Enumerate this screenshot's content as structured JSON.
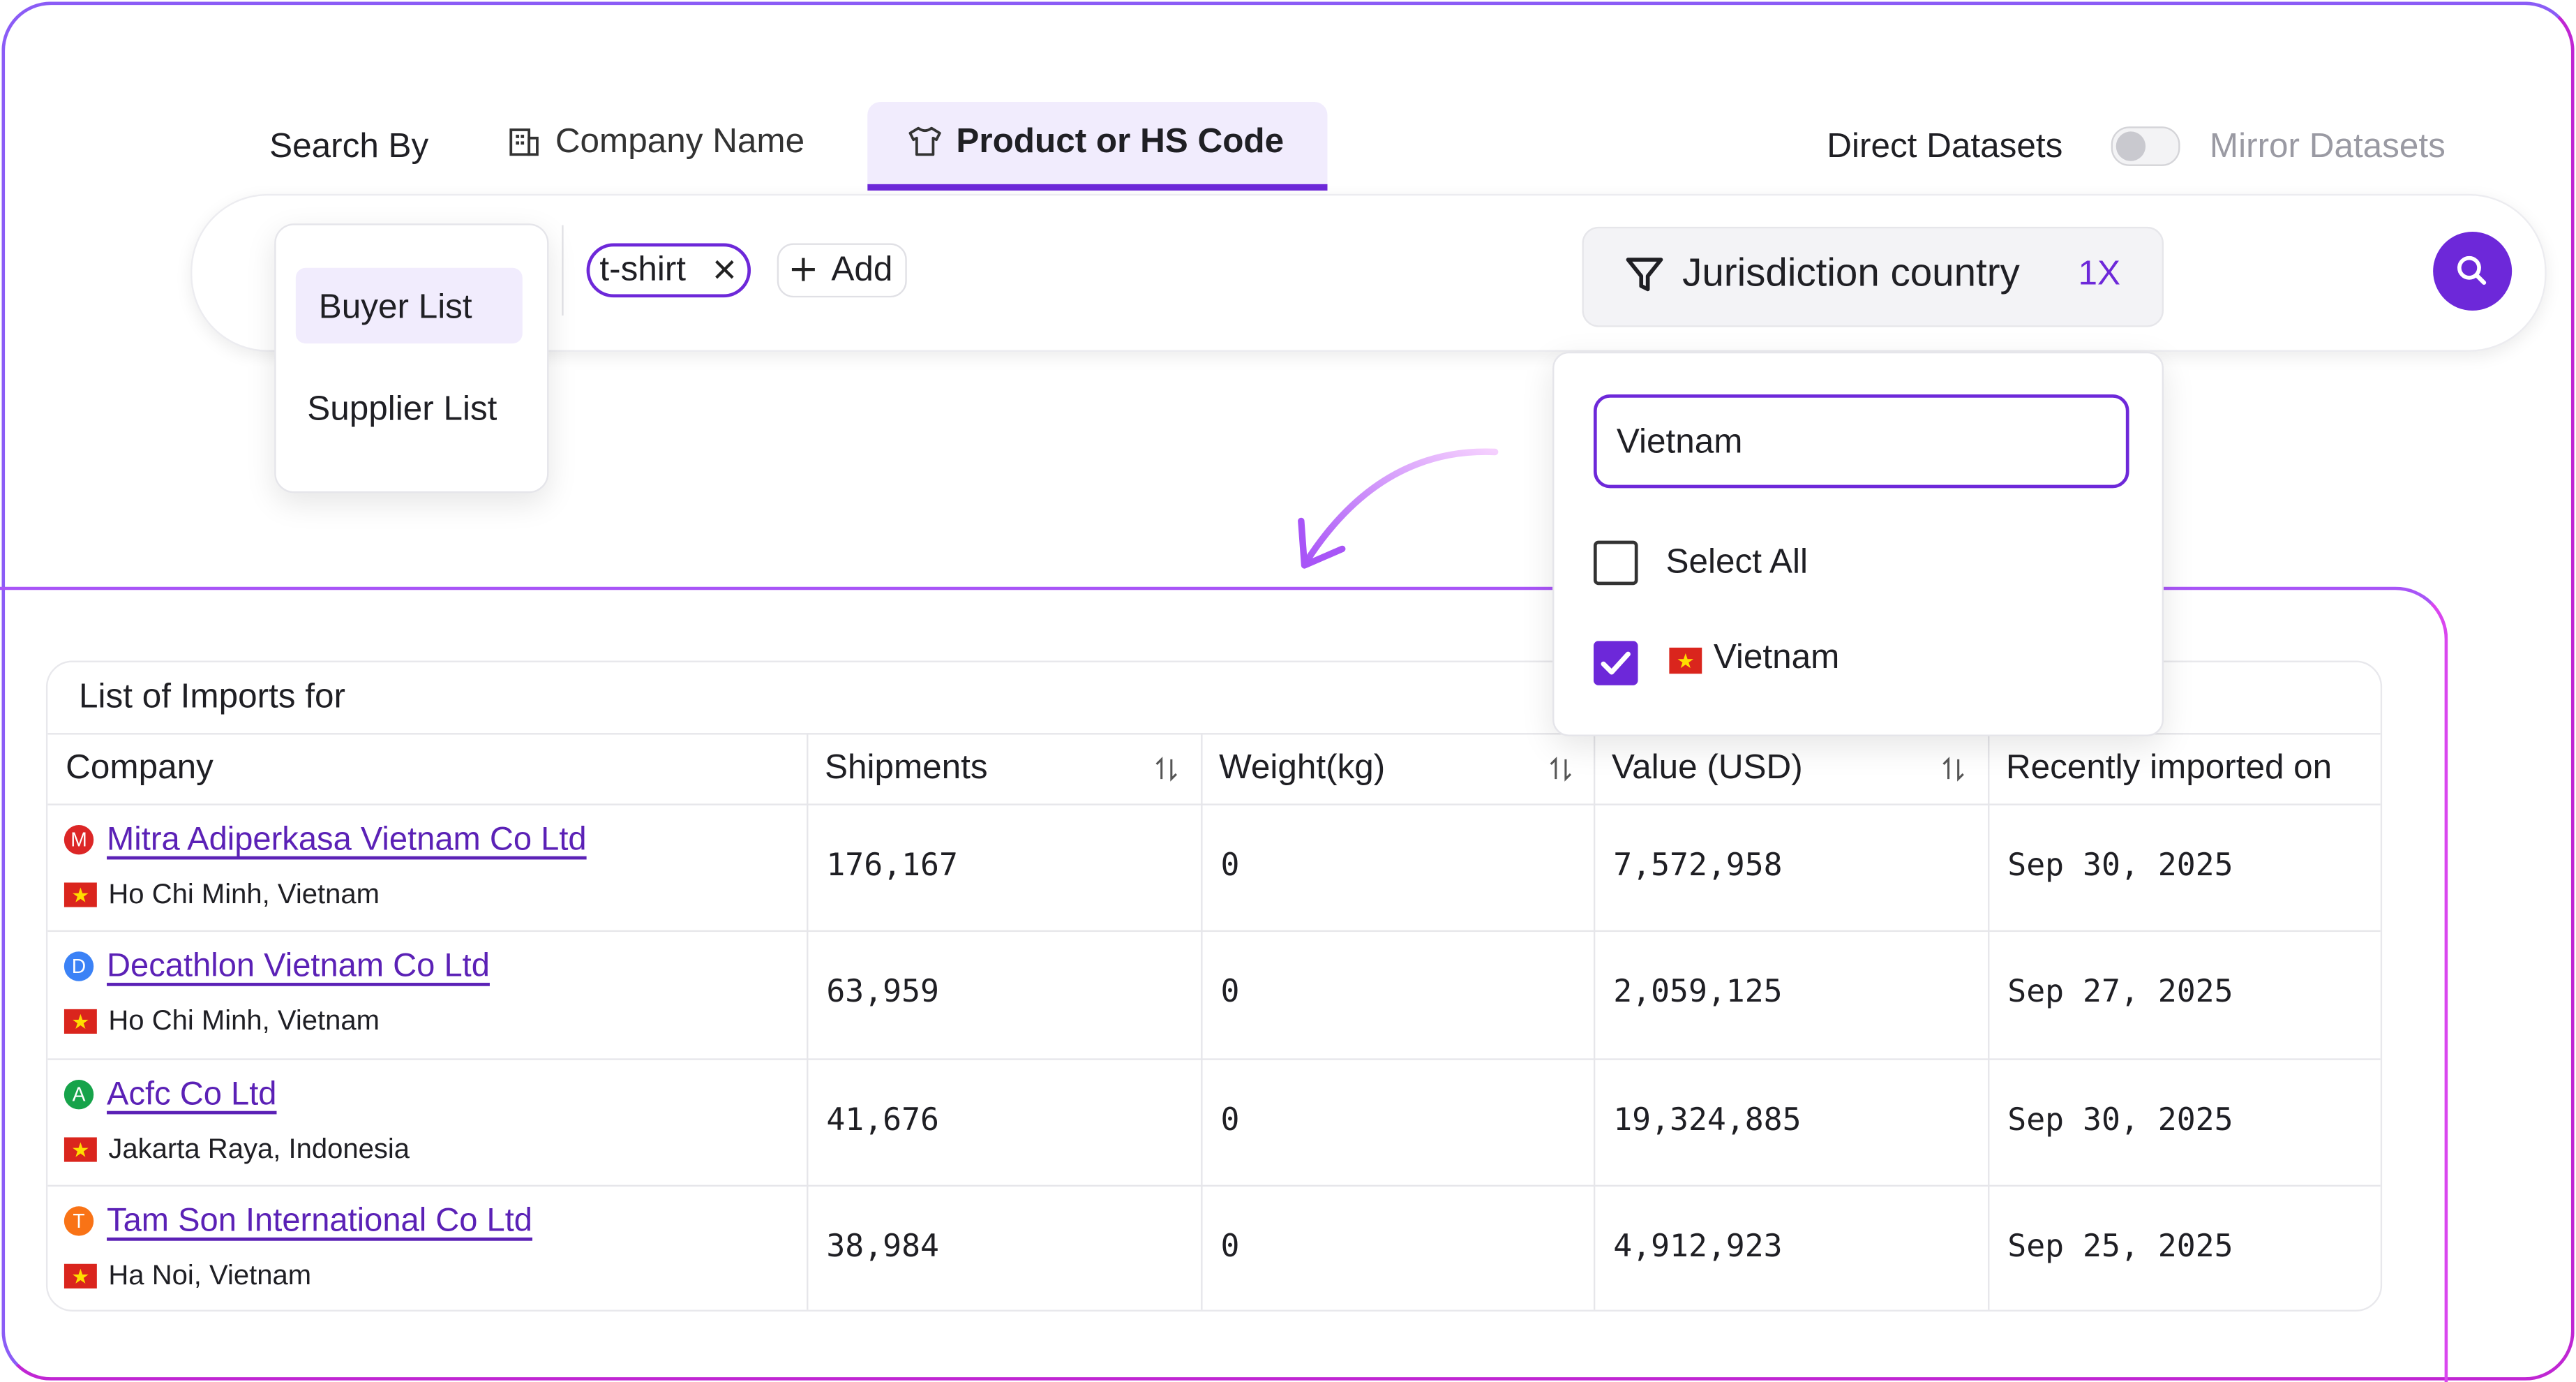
{
  "search_by": "Search By",
  "tabs": [
    "Company Name",
    "Product or HS Code"
  ],
  "datasets": {
    "direct": "Direct Datasets",
    "mirror": "Mirror Datasets"
  },
  "list_menu": [
    "Buyer List",
    "Supplier List"
  ],
  "tags": [
    "t-shirt"
  ],
  "add_button": "Add",
  "filter": {
    "label": "Jurisdiction country",
    "count": "1X",
    "search": "Vietnam",
    "options": [
      "Select All",
      "Vietnam"
    ]
  },
  "table": {
    "title": "List of Imports for",
    "headers": [
      "Company",
      "Shipments",
      "Weight(kg)",
      "Value (USD)",
      "Recently imported on"
    ],
    "rows": [
      {
        "initial": "M",
        "company": "Mitra Adiperkasa Vietnam Co Ltd",
        "location": "Ho Chi Minh, Vietnam",
        "cells": [
          "176,167",
          "0",
          "7,572,958",
          "Sep 30, 2025"
        ]
      },
      {
        "initial": "D",
        "company": "Decathlon Vietnam Co Ltd",
        "location": "Ho Chi Minh, Vietnam",
        "cells": [
          "63,959",
          "0",
          "2,059,125",
          "Sep 27, 2025"
        ]
      },
      {
        "initial": "A",
        "company": "Acfc Co Ltd",
        "location": "Jakarta Raya, Indonesia",
        "cells": [
          "41,676",
          "0",
          "19,324,885",
          "Sep 30, 2025"
        ]
      },
      {
        "initial": "T",
        "company": "Tam Son International Co Ltd",
        "location": "Ha Noi, Vietnam",
        "cells": [
          "38,984",
          "0",
          "4,912,923",
          "Sep 25, 2025"
        ]
      }
    ]
  }
}
